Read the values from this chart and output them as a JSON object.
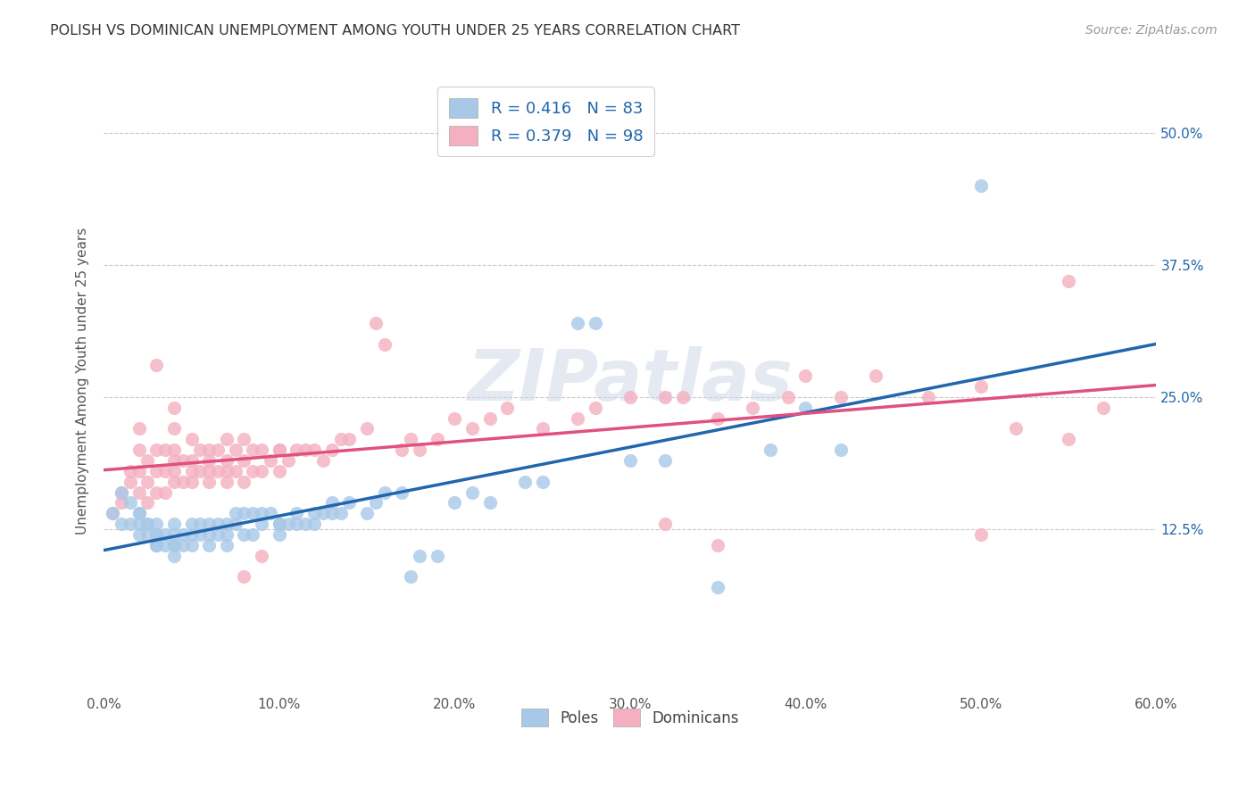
{
  "title": "POLISH VS DOMINICAN UNEMPLOYMENT AMONG YOUTH UNDER 25 YEARS CORRELATION CHART",
  "source": "Source: ZipAtlas.com",
  "ylabel": "Unemployment Among Youth under 25 years",
  "xlim": [
    0.0,
    0.6
  ],
  "ylim": [
    -0.03,
    0.56
  ],
  "poles_color": "#a8c8e8",
  "poles_line_color": "#2166ac",
  "dominicans_color": "#f4b0c0",
  "dominicans_line_color": "#e05080",
  "watermark": "ZIPatlas",
  "poles_x": [
    0.005,
    0.01,
    0.01,
    0.015,
    0.015,
    0.02,
    0.02,
    0.02,
    0.02,
    0.025,
    0.025,
    0.025,
    0.03,
    0.03,
    0.03,
    0.03,
    0.03,
    0.035,
    0.035,
    0.04,
    0.04,
    0.04,
    0.04,
    0.04,
    0.045,
    0.045,
    0.05,
    0.05,
    0.05,
    0.055,
    0.055,
    0.06,
    0.06,
    0.06,
    0.065,
    0.065,
    0.07,
    0.07,
    0.07,
    0.075,
    0.075,
    0.08,
    0.08,
    0.085,
    0.085,
    0.09,
    0.09,
    0.095,
    0.1,
    0.1,
    0.1,
    0.105,
    0.11,
    0.11,
    0.115,
    0.12,
    0.12,
    0.125,
    0.13,
    0.13,
    0.135,
    0.14,
    0.15,
    0.155,
    0.16,
    0.17,
    0.175,
    0.18,
    0.19,
    0.2,
    0.21,
    0.22,
    0.24,
    0.25,
    0.27,
    0.28,
    0.3,
    0.32,
    0.35,
    0.38,
    0.4,
    0.42,
    0.5
  ],
  "poles_y": [
    0.14,
    0.16,
    0.13,
    0.15,
    0.13,
    0.14,
    0.13,
    0.12,
    0.14,
    0.13,
    0.13,
    0.12,
    0.13,
    0.12,
    0.11,
    0.12,
    0.11,
    0.12,
    0.11,
    0.13,
    0.12,
    0.11,
    0.1,
    0.11,
    0.12,
    0.11,
    0.13,
    0.12,
    0.11,
    0.13,
    0.12,
    0.13,
    0.12,
    0.11,
    0.13,
    0.12,
    0.13,
    0.12,
    0.11,
    0.14,
    0.13,
    0.14,
    0.12,
    0.14,
    0.12,
    0.14,
    0.13,
    0.14,
    0.13,
    0.12,
    0.13,
    0.13,
    0.14,
    0.13,
    0.13,
    0.14,
    0.13,
    0.14,
    0.15,
    0.14,
    0.14,
    0.15,
    0.14,
    0.15,
    0.16,
    0.16,
    0.08,
    0.1,
    0.1,
    0.15,
    0.16,
    0.15,
    0.17,
    0.17,
    0.32,
    0.32,
    0.19,
    0.19,
    0.07,
    0.2,
    0.24,
    0.2,
    0.45
  ],
  "dominicans_x": [
    0.005,
    0.01,
    0.01,
    0.015,
    0.015,
    0.02,
    0.02,
    0.02,
    0.02,
    0.025,
    0.025,
    0.025,
    0.03,
    0.03,
    0.03,
    0.03,
    0.035,
    0.035,
    0.035,
    0.04,
    0.04,
    0.04,
    0.04,
    0.04,
    0.04,
    0.045,
    0.045,
    0.05,
    0.05,
    0.05,
    0.05,
    0.055,
    0.055,
    0.06,
    0.06,
    0.06,
    0.06,
    0.065,
    0.065,
    0.07,
    0.07,
    0.07,
    0.07,
    0.075,
    0.075,
    0.08,
    0.08,
    0.08,
    0.085,
    0.085,
    0.09,
    0.09,
    0.095,
    0.1,
    0.1,
    0.1,
    0.105,
    0.11,
    0.115,
    0.12,
    0.125,
    0.13,
    0.135,
    0.14,
    0.15,
    0.155,
    0.16,
    0.17,
    0.175,
    0.18,
    0.19,
    0.2,
    0.21,
    0.22,
    0.23,
    0.25,
    0.27,
    0.28,
    0.3,
    0.32,
    0.33,
    0.35,
    0.37,
    0.39,
    0.4,
    0.42,
    0.44,
    0.47,
    0.5,
    0.52,
    0.55,
    0.57,
    0.08,
    0.09,
    0.32,
    0.35,
    0.5,
    0.55
  ],
  "dominicans_y": [
    0.14,
    0.15,
    0.16,
    0.17,
    0.18,
    0.16,
    0.18,
    0.2,
    0.22,
    0.15,
    0.17,
    0.19,
    0.16,
    0.18,
    0.2,
    0.28,
    0.16,
    0.18,
    0.2,
    0.17,
    0.18,
    0.19,
    0.2,
    0.22,
    0.24,
    0.17,
    0.19,
    0.17,
    0.18,
    0.19,
    0.21,
    0.18,
    0.2,
    0.17,
    0.18,
    0.19,
    0.2,
    0.18,
    0.2,
    0.17,
    0.18,
    0.19,
    0.21,
    0.18,
    0.2,
    0.17,
    0.19,
    0.21,
    0.18,
    0.2,
    0.18,
    0.2,
    0.19,
    0.2,
    0.18,
    0.2,
    0.19,
    0.2,
    0.2,
    0.2,
    0.19,
    0.2,
    0.21,
    0.21,
    0.22,
    0.32,
    0.3,
    0.2,
    0.21,
    0.2,
    0.21,
    0.23,
    0.22,
    0.23,
    0.24,
    0.22,
    0.23,
    0.24,
    0.25,
    0.25,
    0.25,
    0.23,
    0.24,
    0.25,
    0.27,
    0.25,
    0.27,
    0.25,
    0.26,
    0.22,
    0.36,
    0.24,
    0.08,
    0.1,
    0.13,
    0.11,
    0.12,
    0.21
  ]
}
